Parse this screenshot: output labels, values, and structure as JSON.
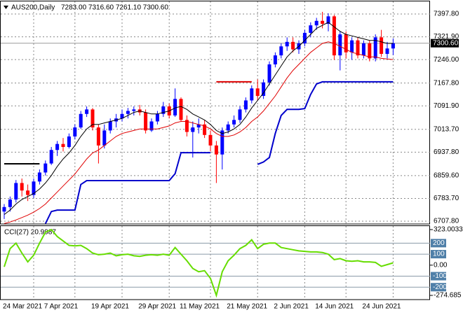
{
  "chart_data": [
    {
      "type": "candlestick",
      "title": "AUS200,Daily",
      "subtitle": "7283.00 7316.60 7261.10 7300.60",
      "categories": [
        "24 Mar 2021",
        null,
        null,
        null,
        null,
        null,
        null,
        "7 Apr 2021",
        null,
        null,
        null,
        null,
        null,
        null,
        null,
        "19 Apr 2021",
        null,
        null,
        null,
        null,
        null,
        null,
        null,
        "29 Apr 2021",
        null,
        null,
        null,
        null,
        null,
        null,
        "11 May 2021",
        null,
        null,
        null,
        null,
        null,
        null,
        null,
        "21 May 2021",
        null,
        null,
        null,
        null,
        null,
        null,
        null,
        "2 Jun 2021",
        null,
        null,
        null,
        null,
        null,
        null,
        "14 Jun 2021",
        null,
        null,
        null,
        null,
        null,
        null,
        null,
        "24 Jun 2021",
        null,
        null,
        null,
        null,
        null
      ],
      "open": [
        6740,
        6755,
        6780,
        6835,
        6810,
        6795,
        6840,
        6870,
        6900,
        6945,
        6965,
        6955,
        6990,
        7020,
        7065,
        7080,
        7020,
        6960,
        7010,
        7040,
        7050,
        7065,
        7075,
        7080,
        7070,
        7010,
        7040,
        7065,
        7090,
        7060,
        7115,
        7045,
        7005,
        7020,
        7030,
        6995,
        6960,
        6930,
        7010,
        7030,
        7045,
        7080,
        7110,
        7150,
        7125,
        7170,
        7230,
        7260,
        7290,
        7305,
        7280,
        7300,
        7335,
        7360,
        7375,
        7365,
        7390,
        7260,
        7330,
        7270,
        7310,
        7260,
        7300,
        7250,
        7320,
        7265,
        7283
      ],
      "high": [
        6765,
        6790,
        6845,
        6850,
        6830,
        6850,
        6880,
        6910,
        6955,
        6975,
        6985,
        7000,
        7030,
        7075,
        7090,
        7085,
        7030,
        7030,
        7050,
        7065,
        7080,
        7085,
        7090,
        7095,
        7080,
        7050,
        7075,
        7105,
        7100,
        7150,
        7120,
        7060,
        7040,
        7050,
        7045,
        7010,
        6975,
        7020,
        7040,
        7060,
        7090,
        7120,
        7160,
        7180,
        7180,
        7240,
        7270,
        7300,
        7320,
        7320,
        7310,
        7345,
        7370,
        7385,
        7405,
        7400,
        7395,
        7340,
        7340,
        7320,
        7320,
        7310,
        7310,
        7330,
        7345,
        7305,
        7316.6
      ],
      "low": [
        6715,
        6740,
        6770,
        6790,
        6775,
        6785,
        6830,
        6860,
        6895,
        6925,
        6940,
        6950,
        6980,
        7015,
        7055,
        7010,
        6900,
        6950,
        7000,
        7020,
        7040,
        7050,
        7060,
        7060,
        7000,
        7005,
        7030,
        7055,
        7050,
        7055,
        7040,
        6990,
        6920,
        7000,
        6985,
        6940,
        6835,
        6880,
        7000,
        7020,
        7035,
        7070,
        7100,
        7110,
        7115,
        7160,
        7220,
        7250,
        7275,
        7270,
        7265,
        7290,
        7320,
        7345,
        7350,
        7340,
        7245,
        7210,
        7250,
        7245,
        7250,
        7250,
        7240,
        7240,
        7255,
        7250,
        7261.1
      ],
      "close": [
        6755,
        6780,
        6835,
        6810,
        6795,
        6840,
        6870,
        6900,
        6945,
        6965,
        6955,
        6990,
        7020,
        7065,
        7080,
        7020,
        6960,
        7010,
        7040,
        7050,
        7065,
        7075,
        7080,
        7070,
        7010,
        7040,
        7065,
        7090,
        7060,
        7115,
        7045,
        7005,
        7020,
        7030,
        6995,
        6960,
        6930,
        7010,
        7030,
        7045,
        7080,
        7110,
        7150,
        7125,
        7170,
        7230,
        7260,
        7290,
        7305,
        7280,
        7300,
        7335,
        7360,
        7375,
        7365,
        7390,
        7260,
        7330,
        7270,
        7310,
        7260,
        7300,
        7250,
        7320,
        7265,
        7283,
        7300.6
      ],
      "up_color": "#0000ff",
      "down_color": "#ff0000",
      "series": [
        {
          "color": "#000000",
          "width": 1,
          "values": [
            6730,
            6745,
            6765,
            6780,
            6790,
            6800,
            6815,
            6835,
            6860,
            6890,
            6915,
            6935,
            6960,
            6990,
            7015,
            7030,
            7030,
            7035,
            7040,
            7045,
            7050,
            7060,
            7070,
            7075,
            7070,
            7065,
            7065,
            7070,
            7075,
            7085,
            7090,
            7080,
            7065,
            7055,
            7045,
            7030,
            7010,
            7000,
            7005,
            7015,
            7030,
            7055,
            7085,
            7110,
            7135,
            7165,
            7195,
            7225,
            7255,
            7275,
            7290,
            7310,
            7330,
            7350,
            7360,
            7370,
            7355,
            7340,
            7330,
            7325,
            7320,
            7315,
            7310,
            7310,
            7305,
            7300,
            7300
          ]
        },
        {
          "color": "#e00000",
          "width": 1,
          "values": [
            6700,
            6705,
            6712,
            6720,
            6728,
            6738,
            6750,
            6765,
            6785,
            6805,
            6825,
            6845,
            6865,
            6890,
            6915,
            6935,
            6945,
            6960,
            6975,
            6990,
            7000,
            7005,
            7010,
            7015,
            7015,
            7015,
            7015,
            7020,
            7025,
            7035,
            7040,
            7040,
            7035,
            7030,
            7025,
            7015,
            7000,
            6990,
            6990,
            6995,
            7005,
            7020,
            7040,
            7055,
            7075,
            7100,
            7125,
            7155,
            7185,
            7210,
            7230,
            7250,
            7270,
            7285,
            7300,
            7305,
            7300,
            7290,
            7280,
            7270,
            7265,
            7260,
            7255,
            7255,
            7250,
            7248,
            7246
          ]
        },
        {
          "color": "#0000cc",
          "width": 2,
          "values": [
            null,
            null,
            null,
            null,
            null,
            null,
            null,
            6700,
            6740,
            6745,
            6745,
            6745,
            6745,
            6830,
            6843,
            6843,
            6843,
            6843,
            6843,
            6843,
            6843,
            6843,
            6843,
            6843,
            6843,
            6843,
            6843,
            6843,
            6843,
            6866,
            6936,
            6936,
            6936,
            6936,
            6936,
            6936,
            null,
            null,
            null,
            null,
            null,
            null,
            null,
            6897,
            6905,
            6920,
            7000,
            7060,
            7080,
            7080,
            7080,
            7083,
            7130,
            7165,
            7172,
            7172,
            7172,
            7172,
            7172,
            7172,
            7172,
            7172,
            7172,
            7172,
            7172,
            7172,
            7172
          ]
        },
        {
          "color": "#dd0000",
          "width": 2,
          "values": [
            null,
            null,
            null,
            null,
            null,
            null,
            null,
            null,
            null,
            null,
            null,
            null,
            null,
            null,
            null,
            null,
            null,
            null,
            null,
            null,
            null,
            null,
            null,
            null,
            null,
            null,
            null,
            null,
            null,
            null,
            null,
            null,
            null,
            null,
            null,
            null,
            7172,
            7172,
            7172,
            7172,
            7172,
            7172,
            7172,
            null,
            null,
            null,
            null,
            null,
            null,
            null,
            null,
            null,
            null,
            null,
            null,
            null,
            null,
            null,
            null,
            null,
            null,
            null,
            null,
            null,
            null,
            null,
            null
          ]
        },
        {
          "color": "#000000",
          "width": 2,
          "values": [
            6899,
            6899,
            6899,
            6899,
            6899,
            6899,
            6899,
            null,
            null,
            null,
            null,
            null,
            null,
            null,
            null,
            null,
            null,
            null,
            null,
            null,
            null,
            null,
            null,
            null,
            null,
            null,
            null,
            null,
            null,
            null,
            null,
            null,
            null,
            null,
            null,
            null,
            null,
            null,
            null,
            null,
            null,
            null,
            null,
            null,
            null,
            null,
            null,
            null,
            null,
            null,
            null,
            null,
            null,
            null,
            null,
            null,
            null,
            null,
            null,
            null,
            null,
            null,
            null,
            null,
            null,
            null,
            null
          ]
        }
      ],
      "ylim": [
        6698.5,
        7435.1
      ],
      "yticks": [
        {
          "value": 7397.8,
          "label": "7397.80"
        },
        {
          "value": 7321.9,
          "label": "7321.90"
        },
        {
          "value": 7246,
          "label": "7246.00"
        },
        {
          "value": 7167.8,
          "label": "7167.80"
        },
        {
          "value": 7091.9,
          "label": "7091.90"
        },
        {
          "value": 7013.7,
          "label": "7013.70"
        },
        {
          "value": 6937.8,
          "label": "6937.80"
        },
        {
          "value": 6859.6,
          "label": "6859.60"
        },
        {
          "value": 6783.7,
          "label": "6783.70"
        },
        {
          "value": 6707.8,
          "label": "6707.80"
        }
      ],
      "last_price": {
        "value": 7300.6,
        "label": "7300.60"
      },
      "grid": true
    },
    {
      "type": "line",
      "title": "CCI(27) 20.9987",
      "color": "#66dd00",
      "values": [
        -15,
        150,
        200,
        110,
        30,
        90,
        200,
        300,
        323.0033,
        260,
        220,
        180,
        175,
        180,
        150,
        110,
        95,
        100,
        110,
        85,
        95,
        100,
        85,
        80,
        90,
        95,
        90,
        100,
        90,
        160,
        100,
        40,
        -30,
        -60,
        -50,
        -120,
        -274.685,
        -60,
        40,
        90,
        150,
        180,
        230,
        150,
        190,
        200,
        200,
        160,
        150,
        140,
        130,
        125,
        120,
        120,
        115,
        100,
        50,
        60,
        40,
        35,
        40,
        30,
        30,
        25,
        -10,
        5,
        20.9987
      ],
      "ylim": [
        -274.685,
        323.0033
      ],
      "yticks": [
        323.0033,
        {
          "value": 0,
          "label": "0.00"
        },
        -274.685
      ],
      "levels": [
        200,
        100,
        -100,
        -200
      ],
      "grid": true
    }
  ]
}
